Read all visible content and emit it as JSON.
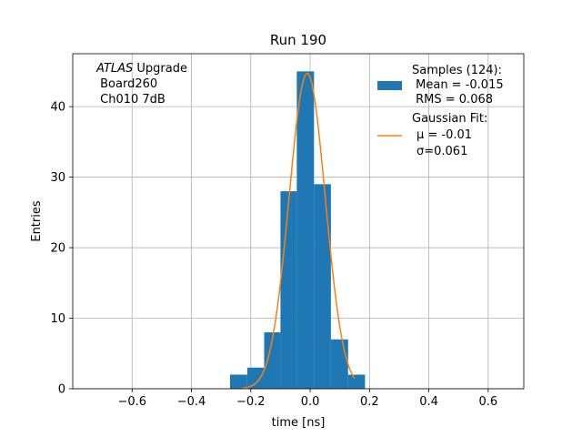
{
  "chart_data": {
    "type": "bar",
    "title": "Run 190",
    "xlabel": "time [ns]",
    "ylabel": "Entries",
    "xlim": [
      -0.8,
      0.72
    ],
    "ylim": [
      0,
      47.5
    ],
    "grid": true,
    "xticks": [
      -0.6,
      -0.4,
      -0.2,
      0.0,
      0.2,
      0.4,
      0.6
    ],
    "xtick_labels": [
      "−0.6",
      "−0.4",
      "−0.2",
      "0.0",
      "0.2",
      "0.4",
      "0.6"
    ],
    "yticks": [
      0,
      10,
      20,
      30,
      40
    ],
    "ytick_labels": [
      "0",
      "10",
      "20",
      "30",
      "40"
    ],
    "annotation": {
      "experiment": "ATLAS",
      "experiment_suffix": " Upgrade",
      "board": " Board260",
      "channel": " Ch010 7dB"
    },
    "histogram": {
      "name": "Samples (124):",
      "mean_label": " Mean = -0.015",
      "rms_label": " RMS = 0.068",
      "color": "#1f77b4",
      "bin_edges": [
        -0.27,
        -0.212,
        -0.155,
        -0.1,
        -0.045,
        0.013,
        0.07,
        0.128,
        0.185
      ],
      "counts": [
        2,
        3,
        8,
        28,
        45,
        29,
        7,
        2
      ]
    },
    "fit": {
      "name": "Gaussian Fit:",
      "mu_label": "μ = -0.01",
      "sigma_label": "σ=0.061",
      "color": "#ff7f0e",
      "mu": -0.01,
      "sigma": 0.061,
      "amplitude": 44.7,
      "x_range": [
        -0.23,
        0.15
      ]
    },
    "legend_position": "upper-right",
    "annotation_position": "upper-left"
  }
}
